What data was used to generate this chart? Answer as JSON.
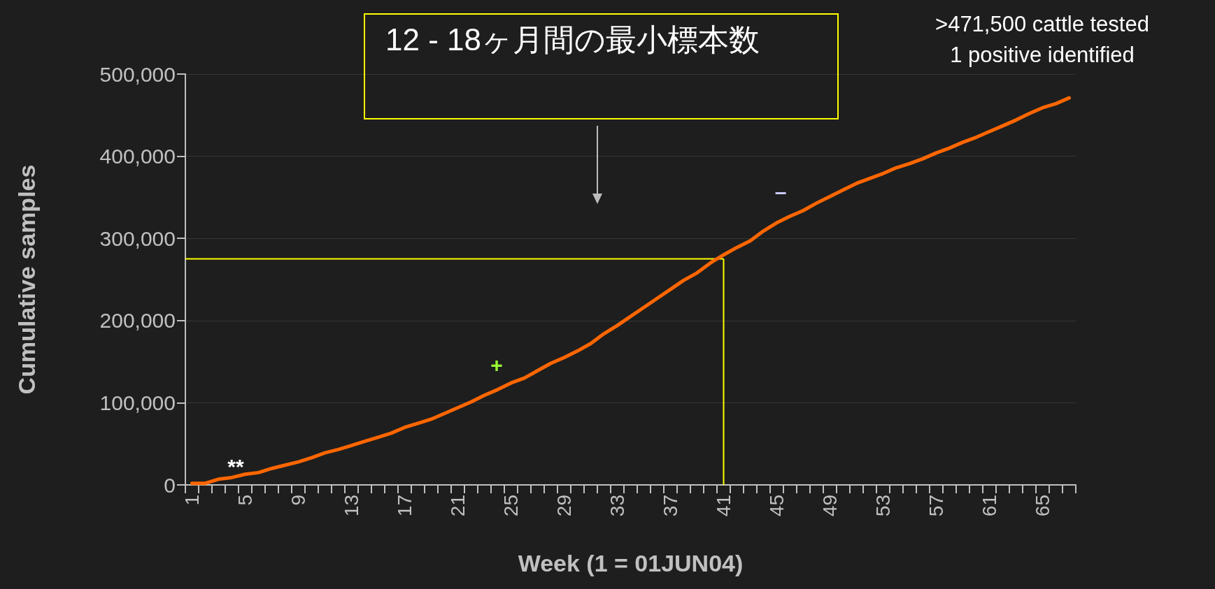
{
  "chart_data": {
    "type": "line",
    "title": "12 - 18ヶ月間の最小標本数",
    "xlabel": "Week (1 = 01JUN04)",
    "ylabel": "Cumulative samples",
    "categories": [
      "1",
      null,
      null,
      null,
      "5",
      null,
      null,
      null,
      "9",
      null,
      null,
      null,
      "13",
      null,
      null,
      null,
      "17",
      null,
      null,
      null,
      "21",
      null,
      null,
      null,
      "25",
      null,
      null,
      null,
      "29",
      null,
      null,
      null,
      "33",
      null,
      null,
      null,
      "37",
      null,
      null,
      null,
      "41",
      null,
      null,
      null,
      "45",
      null,
      null,
      null,
      "49",
      null,
      null,
      null,
      "53",
      null,
      null,
      null,
      "57",
      null,
      null,
      null,
      "61",
      null,
      null,
      null,
      "65",
      null,
      null
    ],
    "series": [
      {
        "color": "#ff6600",
        "values": [
          2000,
          2000,
          7000,
          9000,
          13000,
          15000,
          20000,
          24000,
          28000,
          33000,
          39000,
          43000,
          48000,
          53000,
          58000,
          63000,
          70000,
          75000,
          80000,
          87000,
          94000,
          101000,
          109000,
          116000,
          124000,
          130000,
          139000,
          148000,
          155000,
          163000,
          172000,
          184000,
          194000,
          205000,
          216000,
          227000,
          238000,
          249000,
          258000,
          270000,
          280000,
          289000,
          297000,
          309000,
          319000,
          327000,
          334000,
          343000,
          351000,
          359000,
          367000,
          373000,
          379000,
          386000,
          391000,
          397000,
          404000,
          410000,
          417000,
          423000,
          430000,
          437000,
          444000,
          452000,
          459000,
          464000,
          471000
        ]
      }
    ],
    "ylim": [
      0,
      500000
    ],
    "yticks": [
      0,
      {
        "value": 100000,
        "label": "100,000"
      },
      {
        "value": 200000,
        "label": "200,000"
      },
      {
        "value": 300000,
        "label": "300,000"
      },
      {
        "value": 400000,
        "label": "400,000"
      },
      {
        "value": 500000,
        "label": "500,000"
      }
    ],
    "grid": "y",
    "marker": "none",
    "line_style": "solid",
    "ref_lines": [
      {
        "axis": "y",
        "value": 275000,
        "color": "#ffff00"
      },
      {
        "axis": "x",
        "value": "41",
        "color": "#ffff00"
      }
    ],
    "annotations": [
      ">471,500 cattle tested\n1 positive identified",
      "**",
      "+",
      "–"
    ]
  }
}
